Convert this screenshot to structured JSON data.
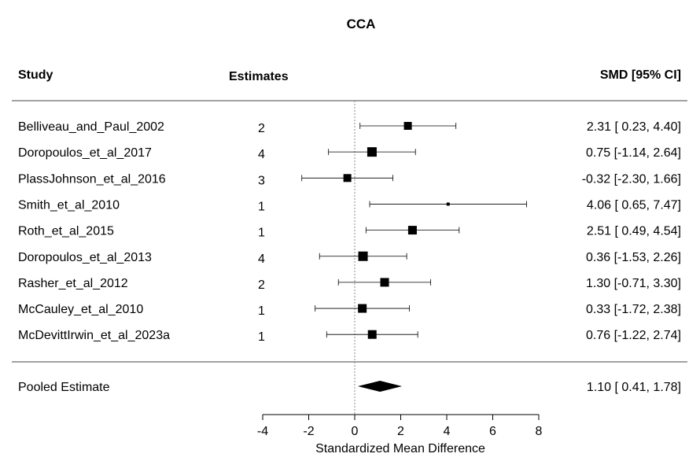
{
  "chart_data": {
    "type": "forest",
    "title": "CCA",
    "headers": {
      "study": "Study",
      "estimates": "Estimates",
      "smd": "SMD [95% CI]"
    },
    "xlabel": "Standardized Mean Difference",
    "xlim": [
      -4,
      8
    ],
    "xticks": [
      -4,
      -2,
      0,
      2,
      4,
      6,
      8
    ],
    "reference_line": 0,
    "studies": [
      {
        "name": "Belliveau_and_Paul_2002",
        "estimates": "2",
        "smd": 2.31,
        "lower": 0.23,
        "upper": 4.4,
        "ci_text": "2.31 [ 0.23, 4.40]"
      },
      {
        "name": "Doropoulos_et_al_2017",
        "estimates": "4",
        "smd": 0.75,
        "lower": -1.14,
        "upper": 2.64,
        "ci_text": "0.75 [-1.14, 2.64]"
      },
      {
        "name": "PlassJohnson_et_al_2016",
        "estimates": "3",
        "smd": -0.32,
        "lower": -2.3,
        "upper": 1.66,
        "ci_text": "-0.32 [-2.30, 1.66]"
      },
      {
        "name": "Smith_et_al_2010",
        "estimates": "1",
        "smd": 4.06,
        "lower": 0.65,
        "upper": 7.47,
        "ci_text": "4.06 [ 0.65, 7.47]"
      },
      {
        "name": "Roth_et_al_2015",
        "estimates": "1",
        "smd": 2.51,
        "lower": 0.49,
        "upper": 4.54,
        "ci_text": "2.51 [ 0.49, 4.54]"
      },
      {
        "name": "Doropoulos_et_al_2013",
        "estimates": "4",
        "smd": 0.36,
        "lower": -1.53,
        "upper": 2.26,
        "ci_text": "0.36 [-1.53, 2.26]"
      },
      {
        "name": "Rasher_et_al_2012",
        "estimates": "2",
        "smd": 1.3,
        "lower": -0.71,
        "upper": 3.3,
        "ci_text": "1.30 [-0.71, 3.30]"
      },
      {
        "name": "McCauley_et_al_2010",
        "estimates": "1",
        "smd": 0.33,
        "lower": -1.72,
        "upper": 2.38,
        "ci_text": "0.33 [-1.72, 2.38]"
      },
      {
        "name": "McDevittIrwin_et_al_2023a",
        "estimates": "1",
        "smd": 0.76,
        "lower": -1.22,
        "upper": 2.74,
        "ci_text": "0.76 [-1.22, 2.74]"
      }
    ],
    "pooled": {
      "name": "Pooled Estimate",
      "smd": 1.1,
      "lower": 0.41,
      "upper": 1.78,
      "ci_text": "1.10 [ 0.41, 1.78]"
    }
  }
}
